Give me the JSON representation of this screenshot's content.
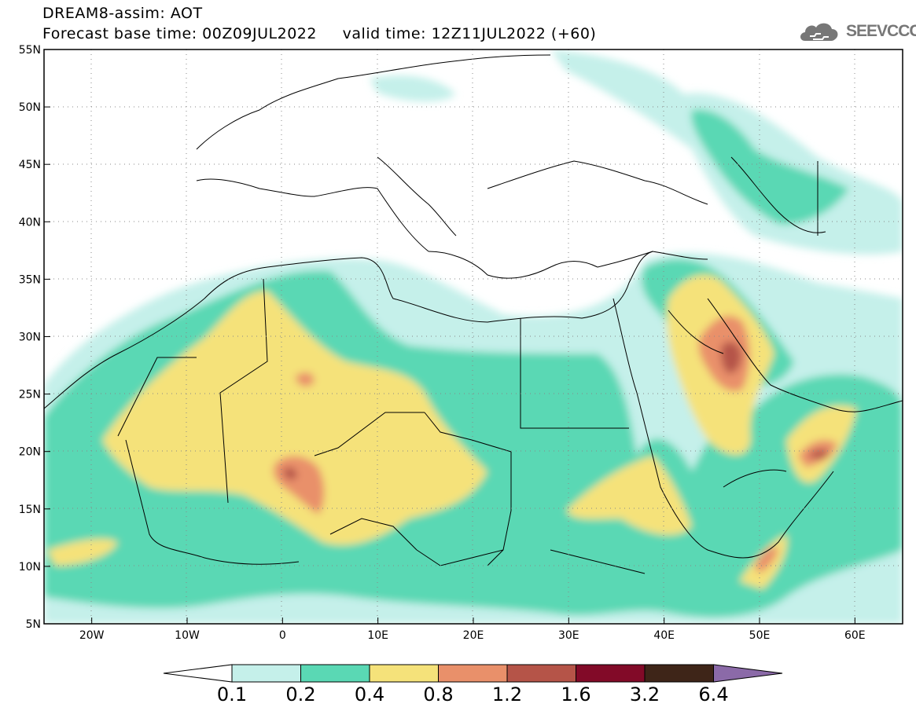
{
  "header": {
    "line1": "DREAM8-assim: AOT",
    "line2": "Forecast base time: 00Z09JUL2022     valid time: 12Z11JUL2022 (+60)"
  },
  "logo": {
    "text": "SEEVCCC",
    "icon": "cloud-icon"
  },
  "map": {
    "lon_range": [
      -25,
      65
    ],
    "lat_range": [
      5,
      55
    ],
    "lat_labels": [
      "55N",
      "50N",
      "45N",
      "40N",
      "35N",
      "30N",
      "25N",
      "20N",
      "15N",
      "10N",
      "5N"
    ],
    "lat_values": [
      55,
      50,
      45,
      40,
      35,
      30,
      25,
      20,
      15,
      10,
      5
    ],
    "lon_labels": [
      "20W",
      "10W",
      "0",
      "10E",
      "20E",
      "30E",
      "40E",
      "50E",
      "60E"
    ],
    "lon_values": [
      -20,
      -10,
      0,
      10,
      20,
      30,
      40,
      50,
      60
    ],
    "grid": true
  },
  "colorbar": {
    "labels": [
      "0.1",
      "0.2",
      "0.4",
      "0.8",
      "1.2",
      "1.6",
      "3.2",
      "6.4"
    ],
    "colors": [
      "#ffffff",
      "#c5f0ea",
      "#5ad8b4",
      "#f5e27a",
      "#e9906a",
      "#b55448",
      "#820a28",
      "#3e2518",
      "#8b6aa8"
    ]
  }
}
